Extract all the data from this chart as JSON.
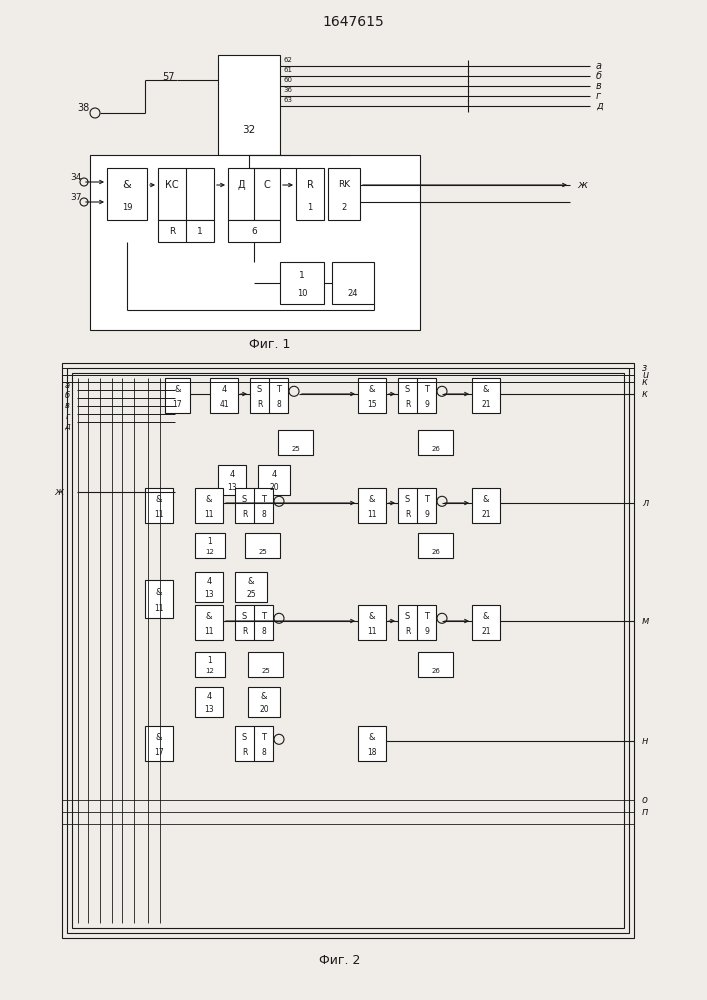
{
  "title": "1647615",
  "fig1_label": "Фиг. 1",
  "fig2_label": "Фиг. 2",
  "bg_color": "#f0ede8",
  "lc": "#1a1a1a",
  "lw": 0.8
}
